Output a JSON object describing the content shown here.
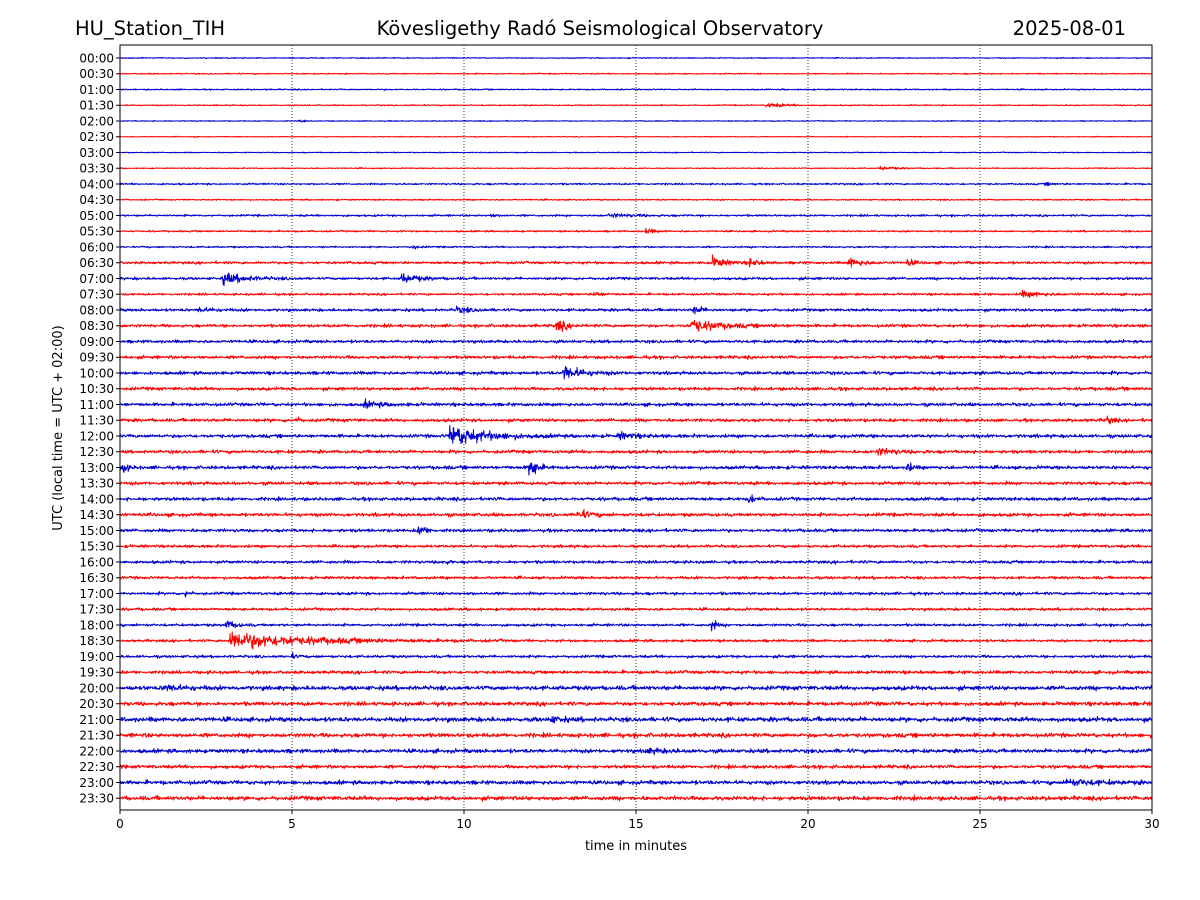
{
  "header": {
    "station": "HU_Station_TIH",
    "observatory": "Kövesligethy Radó Seismological Observatory",
    "date": "2025-08-01"
  },
  "chart_data": {
    "type": "line",
    "title": "Kövesligethy Radó Seismological Observatory",
    "xlabel": "time in minutes",
    "ylabel": "UTC (local time = UTC + 02:00)",
    "xlim": [
      0,
      30
    ],
    "x_ticks": [
      0,
      5,
      10,
      15,
      20,
      25,
      30
    ],
    "grid": "vertical dotted lines at each x tick",
    "legend": "none",
    "colors": [
      "#0000cc",
      "#ff0000"
    ],
    "trace_labels": [
      "00:00",
      "00:30",
      "01:00",
      "01:30",
      "02:00",
      "02:30",
      "03:00",
      "03:30",
      "04:00",
      "04:30",
      "05:00",
      "05:30",
      "06:00",
      "06:30",
      "07:00",
      "07:30",
      "08:00",
      "08:30",
      "09:00",
      "09:30",
      "10:00",
      "10:30",
      "11:00",
      "11:30",
      "12:00",
      "12:30",
      "13:00",
      "13:30",
      "14:00",
      "14:30",
      "15:00",
      "15:30",
      "16:00",
      "16:30",
      "17:00",
      "17:30",
      "18:00",
      "18:30",
      "19:00",
      "19:30",
      "20:00",
      "20:30",
      "21:00",
      "21:30",
      "22:00",
      "22:30",
      "23:00",
      "23:30"
    ],
    "noise_levels": [
      1.0,
      1.1,
      1.2,
      1.1,
      0.9,
      0.8,
      0.9,
      1.0,
      1.6,
      1.3,
      1.8,
      1.6,
      1.6,
      2.4,
      2.4,
      2.0,
      2.6,
      2.8,
      2.8,
      2.9,
      3.0,
      3.0,
      3.0,
      3.0,
      3.1,
      3.0,
      3.1,
      3.0,
      3.1,
      3.1,
      2.9,
      2.6,
      2.7,
      2.6,
      2.6,
      2.5,
      2.4,
      2.4,
      2.5,
      3.0,
      4.0,
      3.6,
      4.2,
      3.8,
      3.6,
      3.2,
      3.6,
      3.8
    ],
    "events": [
      {
        "trace": "01:30",
        "time_min": 18.8,
        "amplitude": 4,
        "duration_min": 0.8
      },
      {
        "trace": "02:00",
        "time_min": 5.2,
        "amplitude": 3,
        "duration_min": 0.15
      },
      {
        "trace": "03:30",
        "time_min": 22.1,
        "amplitude": 3,
        "duration_min": 0.7
      },
      {
        "trace": "04:00",
        "time_min": 26.9,
        "amplitude": 2.5,
        "duration_min": 0.3
      },
      {
        "trace": "05:00",
        "time_min": 10.8,
        "amplitude": 3,
        "duration_min": 0.2
      },
      {
        "trace": "05:00",
        "time_min": 14.2,
        "amplitude": 3,
        "duration_min": 1.2
      },
      {
        "trace": "05:30",
        "time_min": 15.3,
        "amplitude": 5,
        "duration_min": 0.3
      },
      {
        "trace": "06:00",
        "time_min": 8.5,
        "amplitude": 4,
        "duration_min": 0.2
      },
      {
        "trace": "06:30",
        "time_min": 17.2,
        "amplitude": 10,
        "duration_min": 0.6
      },
      {
        "trace": "06:30",
        "time_min": 18.3,
        "amplitude": 6,
        "duration_min": 0.4
      },
      {
        "trace": "06:30",
        "time_min": 21.2,
        "amplitude": 8,
        "duration_min": 0.6
      },
      {
        "trace": "06:30",
        "time_min": 22.9,
        "amplitude": 6,
        "duration_min": 0.3
      },
      {
        "trace": "07:00",
        "time_min": 3.0,
        "amplitude": 9,
        "duration_min": 1.0
      },
      {
        "trace": "07:00",
        "time_min": 8.2,
        "amplitude": 8,
        "duration_min": 0.7
      },
      {
        "trace": "07:30",
        "time_min": 13.8,
        "amplitude": 5,
        "duration_min": 0.3
      },
      {
        "trace": "07:30",
        "time_min": 26.2,
        "amplitude": 5,
        "duration_min": 1.0
      },
      {
        "trace": "08:00",
        "time_min": 2.3,
        "amplitude": 4,
        "duration_min": 0.6
      },
      {
        "trace": "08:00",
        "time_min": 9.8,
        "amplitude": 5,
        "duration_min": 0.6
      },
      {
        "trace": "08:00",
        "time_min": 16.7,
        "amplitude": 8,
        "duration_min": 0.3
      },
      {
        "trace": "08:30",
        "time_min": 12.7,
        "amplitude": 10,
        "duration_min": 0.4
      },
      {
        "trace": "08:30",
        "time_min": 16.6,
        "amplitude": 10,
        "duration_min": 1.3
      },
      {
        "trace": "10:00",
        "time_min": 12.9,
        "amplitude": 12,
        "duration_min": 0.8
      },
      {
        "trace": "11:00",
        "time_min": 7.1,
        "amplitude": 5,
        "duration_min": 0.8
      },
      {
        "trace": "11:30",
        "time_min": 5.1,
        "amplitude": 6,
        "duration_min": 0.15
      },
      {
        "trace": "11:30",
        "time_min": 28.7,
        "amplitude": 8,
        "duration_min": 0.2
      },
      {
        "trace": "12:00",
        "time_min": 9.6,
        "amplitude": 18,
        "duration_min": 1.5
      },
      {
        "trace": "12:00",
        "time_min": 14.5,
        "amplitude": 5,
        "duration_min": 0.8
      },
      {
        "trace": "12:30",
        "time_min": 22.0,
        "amplitude": 5,
        "duration_min": 0.8
      },
      {
        "trace": "13:00",
        "time_min": 11.9,
        "amplitude": 22,
        "duration_min": 0.3
      },
      {
        "trace": "13:00",
        "time_min": 0.1,
        "amplitude": 10,
        "duration_min": 0.2
      },
      {
        "trace": "13:00",
        "time_min": 22.9,
        "amplitude": 9,
        "duration_min": 0.2
      },
      {
        "trace": "14:00",
        "time_min": 18.3,
        "amplitude": 9,
        "duration_min": 0.2
      },
      {
        "trace": "14:30",
        "time_min": 13.3,
        "amplitude": 8,
        "duration_min": 0.5
      },
      {
        "trace": "15:00",
        "time_min": 8.7,
        "amplitude": 10,
        "duration_min": 0.3
      },
      {
        "trace": "16:00",
        "time_min": 9.4,
        "amplitude": 5,
        "duration_min": 0.15
      },
      {
        "trace": "17:00",
        "time_min": 1.9,
        "amplitude": 5,
        "duration_min": 0.2
      },
      {
        "trace": "18:00",
        "time_min": 17.2,
        "amplitude": 10,
        "duration_min": 0.2
      },
      {
        "trace": "18:00",
        "time_min": 3.1,
        "amplitude": 8,
        "duration_min": 0.4
      },
      {
        "trace": "18:30",
        "time_min": 3.2,
        "amplitude": 14,
        "duration_min": 3.5
      },
      {
        "trace": "19:00",
        "time_min": 5.0,
        "amplitude": 4,
        "duration_min": 0.2
      },
      {
        "trace": "20:00",
        "time_min": 1.3,
        "amplitude": 5,
        "duration_min": 0.8
      },
      {
        "trace": "21:00",
        "time_min": 12.5,
        "amplitude": 5,
        "duration_min": 0.5
      },
      {
        "trace": "22:00",
        "time_min": 15.3,
        "amplitude": 4,
        "duration_min": 0.8
      },
      {
        "trace": "23:00",
        "time_min": 27.5,
        "amplitude": 5,
        "duration_min": 1.5
      }
    ]
  }
}
